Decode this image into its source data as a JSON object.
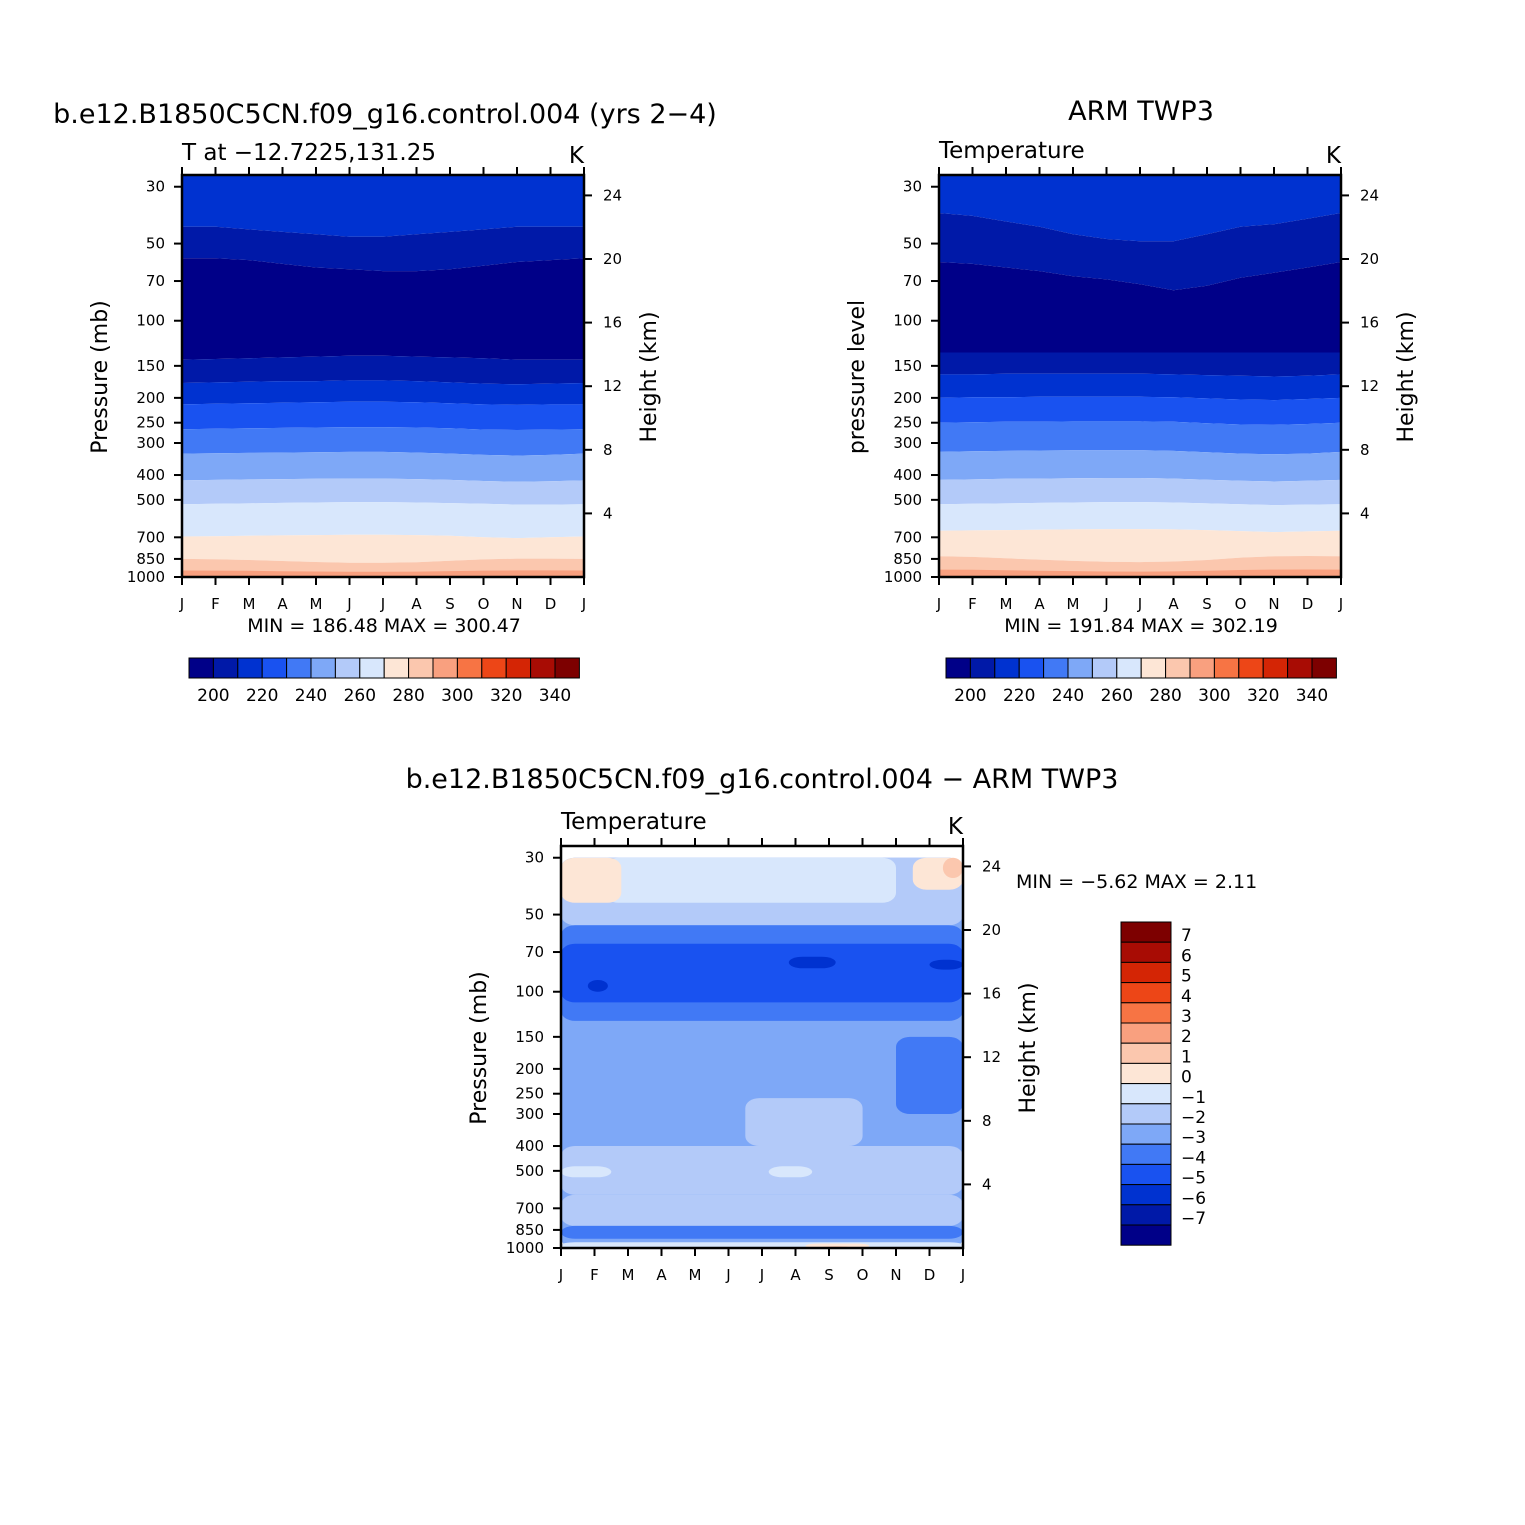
{
  "chart_data": [
    {
      "type": "heatmap",
      "title": "b.e12.B1850C5CN.f09_g16.control.004 (yrs 2−4)",
      "subtitle_left": "T at −12.7225,131.25",
      "subtitle_right": "K",
      "ylabel": "Pressure (mb)",
      "y2label": "Height (km)",
      "x_ticks": [
        "J",
        "F",
        "M",
        "A",
        "M",
        "J",
        "J",
        "A",
        "S",
        "O",
        "N",
        "D",
        "J"
      ],
      "y_ticks": [
        30,
        50,
        70,
        100,
        150,
        200,
        250,
        300,
        400,
        500,
        700,
        850,
        1000
      ],
      "y_log": true,
      "y2_ticks": [
        24,
        20,
        16,
        12,
        8,
        4
      ],
      "min_max_text": "MIN = 186.48 MAX = 300.47",
      "min": 186.48,
      "max": 300.47,
      "levels": [
        190,
        200,
        210,
        220,
        230,
        240,
        250,
        260,
        270,
        280,
        290,
        300,
        310,
        320,
        330,
        340
      ],
      "colorbar_labels": [
        "200",
        "220",
        "240",
        "260",
        "280",
        "300",
        "320",
        "340"
      ],
      "colors": [
        "#000088",
        "#0019a8",
        "#0032d0",
        "#1952f0",
        "#4179f5",
        "#7ea8f7",
        "#b3caf9",
        "#d8e7fc",
        "#fde6d6",
        "#fbc7ae",
        "#f9a07f",
        "#f77444",
        "#ed4617",
        "#d42505",
        "#a80c04",
        "#7d0000"
      ],
      "layers": [
        {
          "level": 230,
          "color": "#0032d0",
          "y": [
            30,
            30,
            30,
            30,
            30,
            30,
            30,
            30,
            30,
            30,
            30,
            30,
            30
          ]
        },
        {
          "level": 220,
          "color": "#0019a8",
          "y": [
            43,
            43,
            44,
            45,
            46,
            47,
            47,
            46,
            45,
            44,
            43,
            43,
            43
          ]
        },
        {
          "level": 210,
          "color": "#000088",
          "y": [
            57,
            57,
            58,
            60,
            62,
            63,
            64,
            64,
            63,
            61,
            59,
            58,
            57
          ]
        },
        {
          "level": 200,
          "color": "#0019a8",
          "y": [
            142,
            141,
            140,
            139,
            138,
            137,
            137,
            138,
            139,
            140,
            142,
            142,
            142
          ]
        },
        {
          "level": 210,
          "color": "#0032d0",
          "y": [
            175,
            174,
            173,
            172,
            172,
            171,
            171,
            172,
            174,
            176,
            177,
            176,
            175
          ]
        },
        {
          "level": 220,
          "color": "#1952f0",
          "y": [
            212,
            211,
            210,
            209,
            208,
            207,
            207,
            208,
            210,
            212,
            213,
            212,
            212
          ]
        },
        {
          "level": 230,
          "color": "#4179f5",
          "y": [
            265,
            264,
            263,
            262,
            261,
            260,
            260,
            261,
            263,
            266,
            267,
            266,
            265
          ]
        },
        {
          "level": 240,
          "color": "#7ea8f7",
          "y": [
            330,
            329,
            328,
            327,
            326,
            325,
            325,
            327,
            330,
            334,
            336,
            334,
            330
          ]
        },
        {
          "level": 250,
          "color": "#b3caf9",
          "y": [
            420,
            418,
            416,
            415,
            414,
            413,
            413,
            415,
            418,
            422,
            425,
            423,
            420
          ]
        },
        {
          "level": 260,
          "color": "#d8e7fc",
          "y": [
            520,
            518,
            516,
            514,
            512,
            510,
            510,
            512,
            515,
            518,
            522,
            522,
            520
          ]
        },
        {
          "level": 270,
          "color": "#fde6d6",
          "y": [
            695,
            693,
            690,
            688,
            686,
            684,
            684,
            686,
            690,
            700,
            705,
            700,
            695
          ]
        },
        {
          "level": 280,
          "color": "#fbc7ae",
          "y": [
            850,
            852,
            858,
            866,
            874,
            880,
            880,
            876,
            864,
            854,
            848,
            848,
            850
          ]
        }
      ]
    },
    {
      "type": "heatmap",
      "title": "ARM TWP3",
      "subtitle_left": "Temperature",
      "subtitle_right": "K",
      "ylabel": "pressure level",
      "y2label": "Height (km)",
      "x_ticks": [
        "J",
        "F",
        "M",
        "A",
        "M",
        "J",
        "J",
        "A",
        "S",
        "O",
        "N",
        "D",
        "J"
      ],
      "y_ticks": [
        30,
        50,
        70,
        100,
        150,
        200,
        250,
        300,
        400,
        500,
        700,
        850,
        1000
      ],
      "y_log": true,
      "y2_ticks": [
        24,
        20,
        16,
        12,
        8,
        4
      ],
      "min_max_text": "MIN = 191.84 MAX = 302.19",
      "min": 191.84,
      "max": 302.19,
      "levels": [
        190,
        200,
        210,
        220,
        230,
        240,
        250,
        260,
        270,
        280,
        290,
        300,
        310,
        320,
        330,
        340
      ],
      "colorbar_labels": [
        "200",
        "220",
        "240",
        "260",
        "280",
        "300",
        "320",
        "340"
      ],
      "colors": [
        "#000088",
        "#0019a8",
        "#0032d0",
        "#1952f0",
        "#4179f5",
        "#7ea8f7",
        "#b3caf9",
        "#d8e7fc",
        "#fde6d6",
        "#fbc7ae",
        "#f9a07f",
        "#f77444",
        "#ed4617",
        "#d42505",
        "#a80c04",
        "#7d0000"
      ],
      "layers": [
        {
          "level": 230,
          "color": "#0032d0",
          "y": [
            30,
            30,
            30,
            30,
            30,
            30,
            30,
            30,
            30,
            30,
            30,
            30,
            30
          ]
        },
        {
          "level": 220,
          "color": "#0019a8",
          "y": [
            38,
            39,
            41,
            43,
            46,
            48,
            49,
            49,
            46,
            43,
            42,
            40,
            38
          ]
        },
        {
          "level": 210,
          "color": "#000088",
          "y": [
            59,
            60,
            62,
            64,
            67,
            69,
            72,
            76,
            73,
            68,
            65,
            62,
            59
          ]
        },
        {
          "level": 200,
          "color": "#0019a8",
          "y": [
            133,
            133,
            133,
            133,
            133,
            133,
            133,
            133,
            133,
            133,
            133,
            133,
            133
          ]
        },
        {
          "level": 210,
          "color": "#0032d0",
          "y": [
            162,
            162,
            161,
            161,
            161,
            161,
            161,
            162,
            163,
            164,
            165,
            164,
            162
          ]
        },
        {
          "level": 220,
          "color": "#1952f0",
          "y": [
            200,
            199,
            199,
            198,
            198,
            198,
            198,
            199,
            201,
            203,
            204,
            202,
            200
          ]
        },
        {
          "level": 230,
          "color": "#4179f5",
          "y": [
            250,
            249,
            248,
            248,
            247,
            247,
            247,
            248,
            251,
            254,
            255,
            253,
            250
          ]
        },
        {
          "level": 240,
          "color": "#7ea8f7",
          "y": [
            325,
            323,
            322,
            321,
            320,
            320,
            320,
            322,
            326,
            330,
            332,
            330,
            325
          ]
        },
        {
          "level": 250,
          "color": "#b3caf9",
          "y": [
            418,
            416,
            414,
            413,
            412,
            411,
            411,
            413,
            417,
            421,
            424,
            421,
            418
          ]
        },
        {
          "level": 260,
          "color": "#d8e7fc",
          "y": [
            520,
            518,
            516,
            514,
            512,
            510,
            510,
            512,
            516,
            520,
            524,
            522,
            520
          ]
        },
        {
          "level": 270,
          "color": "#fde6d6",
          "y": [
            660,
            658,
            656,
            654,
            652,
            650,
            650,
            652,
            656,
            662,
            668,
            664,
            660
          ]
        },
        {
          "level": 280,
          "color": "#fbc7ae",
          "y": [
            830,
            835,
            845,
            855,
            865,
            872,
            875,
            870,
            858,
            840,
            830,
            828,
            830
          ]
        }
      ]
    },
    {
      "type": "heatmap",
      "title": "b.e12.B1850C5CN.f09_g16.control.004 − ARM TWP3",
      "subtitle_left": "Temperature",
      "subtitle_right": "K",
      "ylabel": "Pressure (mb)",
      "y2label": "Height (km)",
      "x_ticks": [
        "J",
        "F",
        "M",
        "A",
        "M",
        "J",
        "J",
        "A",
        "S",
        "O",
        "N",
        "D",
        "J"
      ],
      "y_ticks": [
        30,
        50,
        70,
        100,
        150,
        200,
        250,
        300,
        400,
        500,
        700,
        850,
        1000
      ],
      "y_log": true,
      "y2_ticks": [
        24,
        20,
        16,
        12,
        8,
        4
      ],
      "min_max_text": "MIN =   −5.62 MAX =    2.11",
      "min": -5.62,
      "max": 2.11,
      "colorbar_labels": [
        "7",
        "6",
        "5",
        "4",
        "3",
        "2",
        "1",
        "0",
        "−1",
        "−2",
        "−3",
        "−4",
        "−5",
        "−6",
        "−7"
      ],
      "colors": [
        "#7d0000",
        "#a80c04",
        "#d42505",
        "#ed4617",
        "#f77444",
        "#f9a07f",
        "#fbc7ae",
        "#fde6d6",
        "#d8e7fc",
        "#b3caf9",
        "#7ea8f7",
        "#4179f5",
        "#1952f0",
        "#0032d0",
        "#0019a8",
        "#000088"
      ],
      "regions": [
        {
          "value": -2.5,
          "color": "#7ea8f7",
          "rows": [
            [
              30,
              1000,
              0,
              12
            ]
          ]
        },
        {
          "value": -1.5,
          "color": "#b3caf9",
          "rows": [
            [
              30,
              55,
              0,
              12
            ],
            [
              400,
              620,
              0,
              12
            ],
            [
              620,
              820,
              0,
              12
            ],
            [
              260,
              400,
              5.5,
              9
            ]
          ]
        },
        {
          "value": -0.5,
          "color": "#d8e7fc",
          "rows": [
            [
              30,
              45,
              1.3,
              10
            ],
            [
              480,
              530,
              0,
              1.5
            ],
            [
              480,
              530,
              6.2,
              7.5
            ],
            [
              950,
              1000,
              0,
              12
            ]
          ]
        },
        {
          "value": 0.5,
          "color": "#fde6d6",
          "rows": [
            [
              30,
              45,
              0,
              1.8
            ],
            [
              30,
              40,
              10.5,
              12
            ],
            [
              960,
              1000,
              7.3,
              9.2
            ]
          ]
        },
        {
          "value": 1.5,
          "color": "#fbc7ae",
          "rows": [
            [
              30,
              36,
              11.4,
              12
            ],
            [
              985,
              1000,
              7.8,
              8.6
            ]
          ]
        },
        {
          "value": -3.5,
          "color": "#4179f5",
          "rows": [
            [
              55,
              130,
              0,
              12
            ],
            [
              150,
              300,
              10,
              12
            ],
            [
              820,
              920,
              0,
              12
            ]
          ]
        },
        {
          "value": -4.5,
          "color": "#1952f0",
          "rows": [
            [
              65,
              110,
              0,
              12
            ]
          ]
        },
        {
          "value": -5.5,
          "color": "#0032d0",
          "rows": [
            [
              73,
              81,
              6.8,
              8.2
            ],
            [
              90,
              100,
              0.8,
              1.4
            ],
            [
              75,
              82,
              11,
              12
            ]
          ]
        }
      ]
    }
  ]
}
